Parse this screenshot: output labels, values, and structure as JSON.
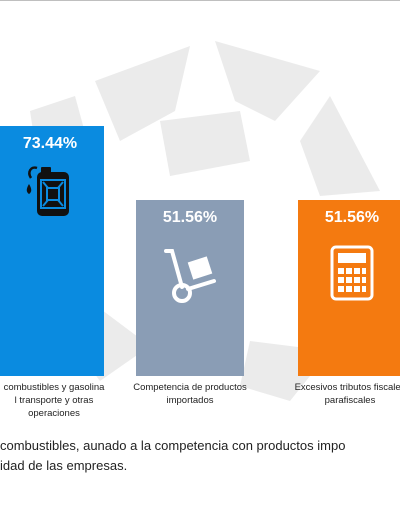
{
  "chart_data": {
    "type": "bar",
    "categories": [
      "combustibles y gasolina\nl transporte y otras\noperaciones",
      "Competencia de productos\nimportados",
      "Excesivos tributos fiscales\nparafiscales"
    ],
    "values": [
      73.44,
      51.56,
      51.56
    ],
    "value_labels": [
      "73.44%",
      "51.56%",
      "51.56%"
    ],
    "colors": [
      "#0a8be0",
      "#8a9db5",
      "#f47a10"
    ],
    "icons": [
      "fuel-can-icon",
      "hand-truck-icon",
      "calculator-icon"
    ],
    "ylim": [
      0,
      80
    ]
  },
  "body_text": [
    "combustibles, aunado a la competencia con productos impo",
    "idad de las empresas."
  ]
}
